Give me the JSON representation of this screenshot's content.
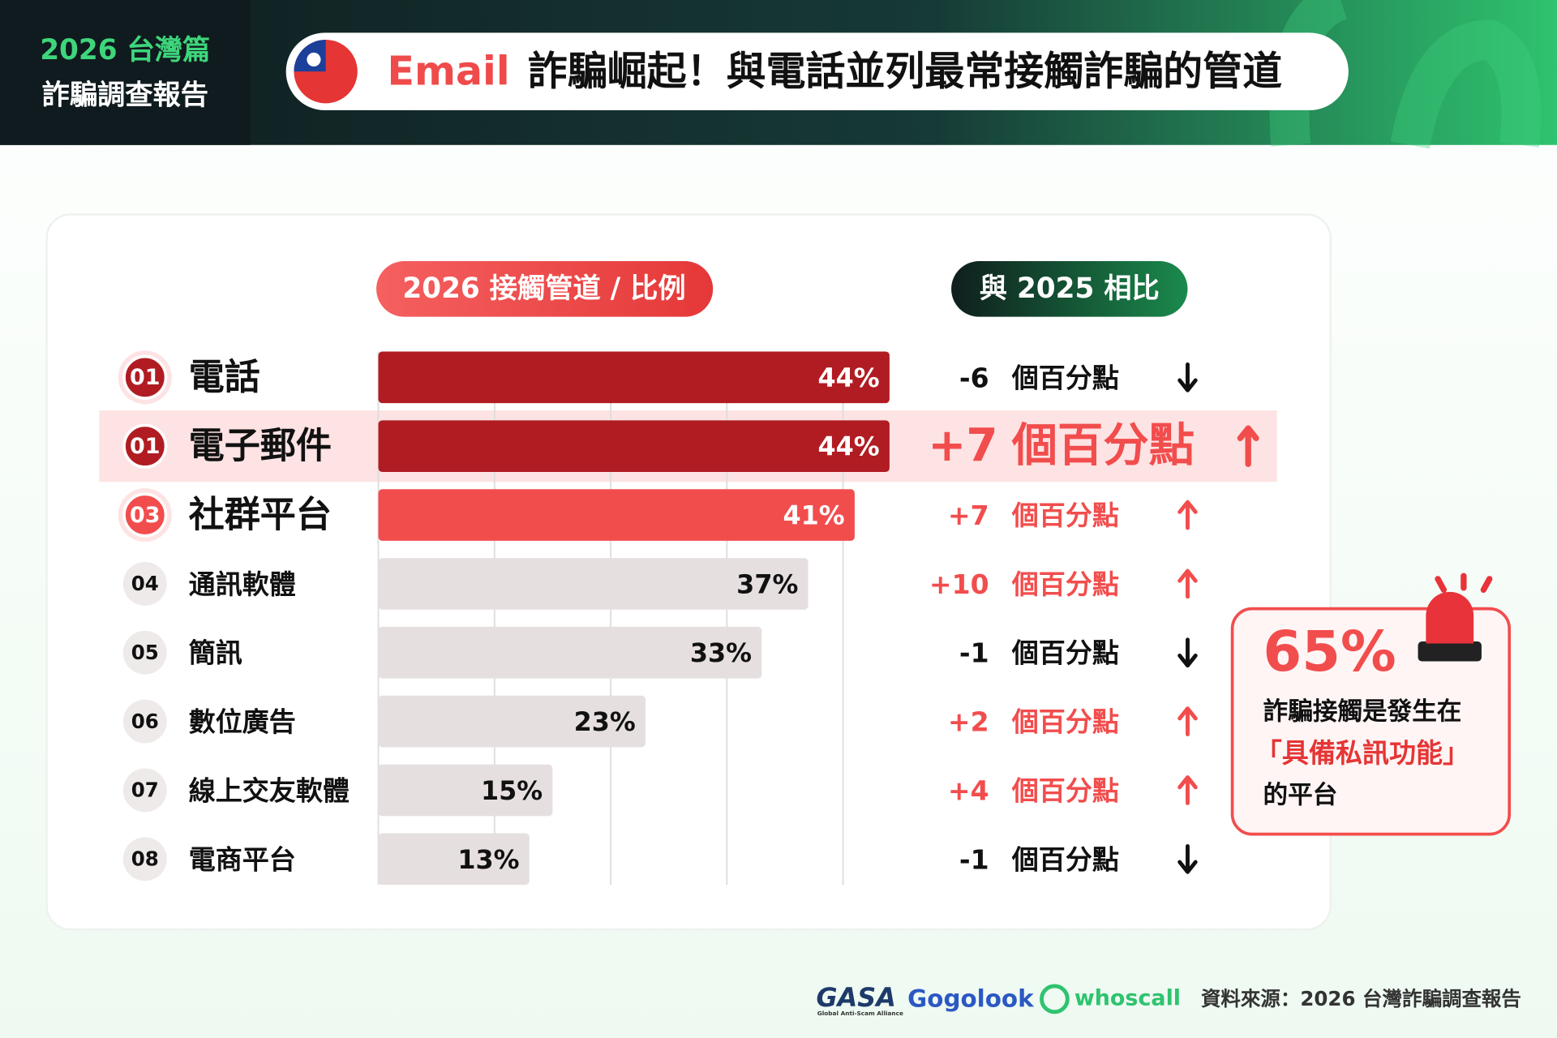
{
  "header": {
    "badge_line1": "2026 台灣篇",
    "badge_line2": "詐騙調查報告",
    "title_highlight": "Email",
    "title_rest": "詐騙崛起！與電話並列最常接觸詐騙的管道"
  },
  "chart_data": {
    "type": "bar",
    "orientation": "horizontal",
    "value_header": "2026 接觸管道 / 比例",
    "change_header": "與 2025 相比",
    "ranks": [
      "01",
      "01",
      "03",
      "04",
      "05",
      "06",
      "07",
      "08"
    ],
    "categories": [
      "電話",
      "電子郵件",
      "社群平台",
      "通訊軟體",
      "簡訊",
      "數位廣告",
      "線上交友軟體",
      "電商平台"
    ],
    "values": [
      44,
      44,
      41,
      37,
      33,
      23,
      15,
      13
    ],
    "value_labels": [
      "44%",
      "44%",
      "41%",
      "37%",
      "33%",
      "23%",
      "15%",
      "13%"
    ],
    "colors": [
      "#b01c22",
      "#b01c22",
      "#f24d4d",
      "#e6dfe0",
      "#e6dfe0",
      "#e6dfe0",
      "#e6dfe0",
      "#e6dfe0"
    ],
    "changes": [
      "-6",
      "+7",
      "+7",
      "+10",
      "-1",
      "+2",
      "+4",
      "-1"
    ],
    "change_unit": "個百分點",
    "highlight_index": 1,
    "xlim": [
      0,
      50
    ],
    "xticks": [
      0,
      10,
      20,
      30,
      40
    ],
    "grid": true
  },
  "callout": {
    "value": "65%",
    "line1": "詐騙接觸是發生在",
    "line2": "「具備私訊功能」",
    "line3": "的平台"
  },
  "footer": {
    "logo1": "GASA",
    "logo1_sub": "Global Anti-Scam Alliance",
    "logo2": "Gogolook",
    "logo3": "whoscall",
    "source": "資料來源：2026 台灣詐騙調查報告"
  }
}
